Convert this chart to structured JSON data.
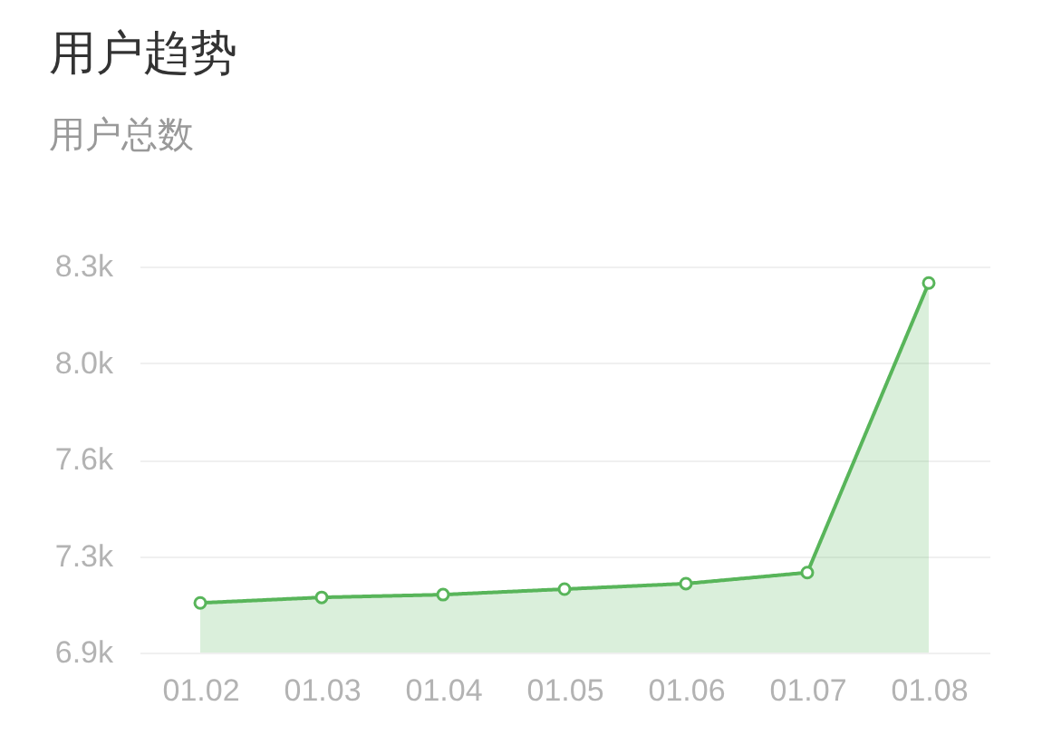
{
  "chart_data": {
    "type": "area",
    "title": "用户趋势",
    "subtitle": "用户总数",
    "categories": [
      "01.02",
      "01.03",
      "01.04",
      "01.05",
      "01.06",
      "01.07",
      "01.08"
    ],
    "series": [
      {
        "color": "#58b55a",
        "values": [
          7080,
          7100,
          7110,
          7130,
          7150,
          7190,
          8240
        ]
      }
    ],
    "ylim": [
      6900,
      8300
    ],
    "yticks": [
      {
        "value": 6900,
        "label": "6.9k"
      },
      {
        "value": 7250,
        "label": "7.3k"
      },
      {
        "value": 7600,
        "label": "7.6k"
      },
      {
        "value": 7950,
        "label": "8.0k"
      },
      {
        "value": 8300,
        "label": "8.3k"
      }
    ],
    "grid": "y",
    "marker": "circle"
  }
}
